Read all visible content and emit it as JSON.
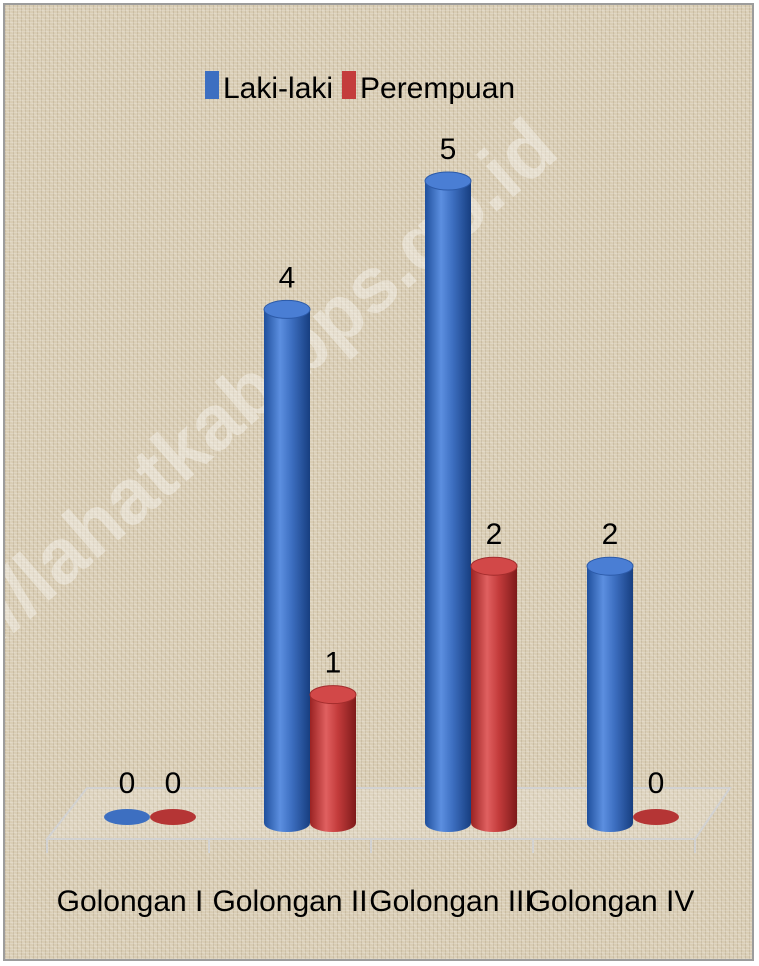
{
  "watermark": "https://lahatkab.bps.go.id",
  "chart_data": {
    "type": "bar",
    "style": "3d-cylinder",
    "categories": [
      "Golongan I",
      "Golongan II",
      "Golongan III",
      "Golongan IV"
    ],
    "series": [
      {
        "name": "Laki-laki",
        "values": [
          0,
          4,
          5,
          2
        ],
        "color": "#3d6fc1"
      },
      {
        "name": "Perempuan",
        "values": [
          0,
          1,
          2,
          0
        ],
        "color": "#c43c3c"
      }
    ],
    "ylim": [
      0,
      5
    ],
    "grid": false,
    "legend": "top-center",
    "data_labels": true
  }
}
